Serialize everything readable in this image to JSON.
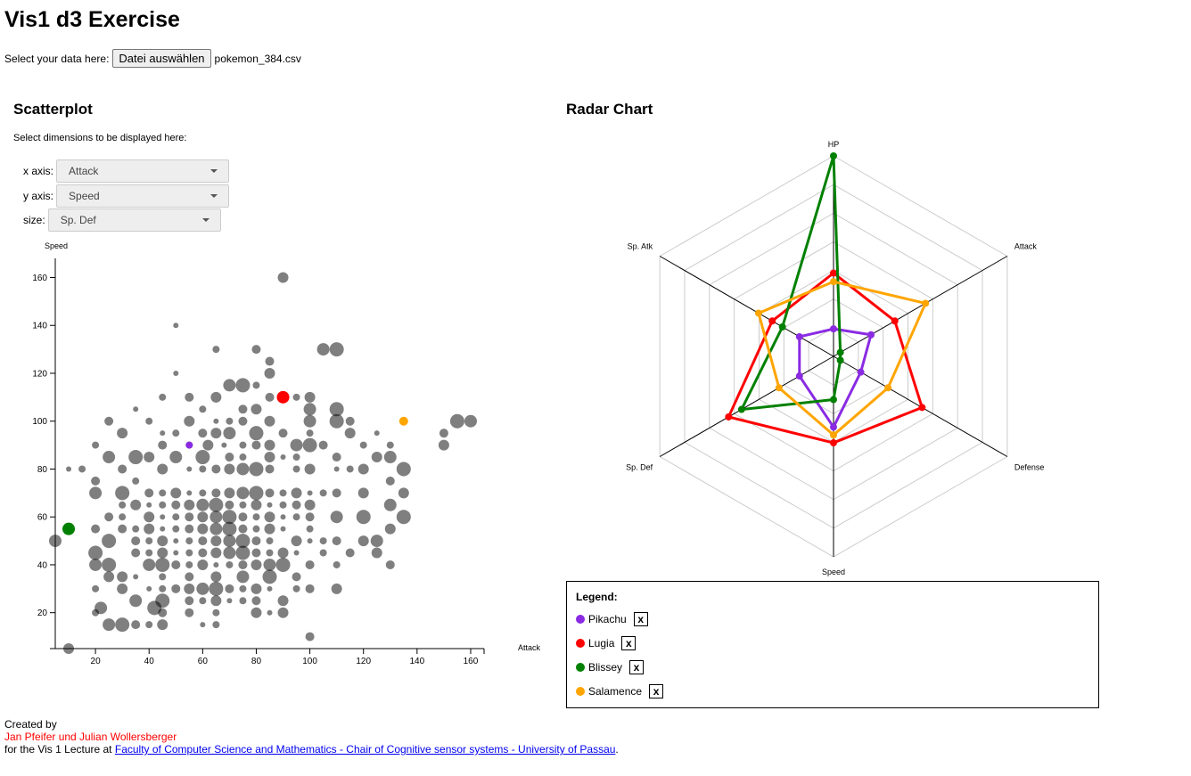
{
  "page": {
    "title": "Vis1 d3 Exercise",
    "file_label": "Select your data here:",
    "file_button": "Datei auswählen",
    "file_name": "pokemon_384.csv"
  },
  "scatter": {
    "title": "Scatterplot",
    "hint": "Select dimensions to be displayed here:",
    "x_label": "x axis:",
    "y_label": "y axis:",
    "size_label": "size:",
    "x_value": "Attack",
    "y_value": "Speed",
    "size_value": "Sp. Def"
  },
  "radar": {
    "title": "Radar Chart"
  },
  "legend": {
    "title": "Legend:",
    "remove_label": "x",
    "items": [
      {
        "name": "Pikachu",
        "color": "#8a2be2"
      },
      {
        "name": "Lugia",
        "color": "#ff0000"
      },
      {
        "name": "Blissey",
        "color": "#008000"
      },
      {
        "name": "Salamence",
        "color": "#ffa500"
      }
    ]
  },
  "footer": {
    "created": "Created by",
    "authors": "Jan Pfeifer und Julian Wollersberger",
    "lecture_prefix": "for the Vis 1 Lecture at ",
    "link_text": "Faculty of Computer Science and Mathematics - Chair of Cognitive sensor systems - University of Passau",
    "suffix": "."
  },
  "chart_data": [
    {
      "type": "scatter",
      "xlabel": "Attack",
      "ylabel": "Speed",
      "xlim": [
        5,
        165
      ],
      "ylim": [
        5,
        168
      ],
      "xticks": [
        20,
        40,
        60,
        80,
        100,
        120,
        140,
        160
      ],
      "yticks": [
        20,
        40,
        60,
        80,
        100,
        120,
        140,
        160
      ],
      "size_dimension": "Sp. Def",
      "grey_points": [
        [
          50,
          140
        ],
        [
          65,
          130
        ],
        [
          80,
          130
        ],
        [
          90,
          160
        ],
        [
          105,
          130
        ],
        [
          110,
          130
        ],
        [
          85,
          125
        ],
        [
          80,
          115
        ],
        [
          85,
          120
        ],
        [
          50,
          120
        ],
        [
          45,
          110
        ],
        [
          55,
          110
        ],
        [
          65,
          110
        ],
        [
          70,
          115
        ],
        [
          75,
          115
        ],
        [
          85,
          110
        ],
        [
          95,
          110
        ],
        [
          100,
          110
        ],
        [
          35,
          105
        ],
        [
          60,
          105
        ],
        [
          75,
          105
        ],
        [
          80,
          105
        ],
        [
          100,
          105
        ],
        [
          110,
          105
        ],
        [
          25,
          100
        ],
        [
          40,
          100
        ],
        [
          55,
          100
        ],
        [
          65,
          100
        ],
        [
          70,
          100
        ],
        [
          75,
          100
        ],
        [
          85,
          100
        ],
        [
          100,
          100
        ],
        [
          110,
          100
        ],
        [
          115,
          100
        ],
        [
          20,
          90
        ],
        [
          30,
          95
        ],
        [
          45,
          95
        ],
        [
          50,
          95
        ],
        [
          60,
          95
        ],
        [
          65,
          95
        ],
        [
          70,
          95
        ],
        [
          80,
          95
        ],
        [
          90,
          95
        ],
        [
          100,
          95
        ],
        [
          115,
          95
        ],
        [
          125,
          95
        ],
        [
          130,
          90
        ],
        [
          150,
          95
        ],
        [
          150,
          90
        ],
        [
          25,
          85
        ],
        [
          35,
          85
        ],
        [
          45,
          90
        ],
        [
          55,
          90
        ],
        [
          62,
          90
        ],
        [
          68,
          90
        ],
        [
          75,
          90
        ],
        [
          80,
          90
        ],
        [
          85,
          90
        ],
        [
          95,
          90
        ],
        [
          100,
          90
        ],
        [
          105,
          90
        ],
        [
          120,
          90
        ],
        [
          125,
          85
        ],
        [
          10,
          80
        ],
        [
          15,
          80
        ],
        [
          30,
          80
        ],
        [
          40,
          85
        ],
        [
          50,
          85
        ],
        [
          60,
          85
        ],
        [
          70,
          85
        ],
        [
          75,
          85
        ],
        [
          85,
          85
        ],
        [
          90,
          85
        ],
        [
          95,
          85
        ],
        [
          110,
          85
        ],
        [
          120,
          80
        ],
        [
          130,
          85
        ],
        [
          135,
          80
        ],
        [
          20,
          75
        ],
        [
          35,
          75
        ],
        [
          45,
          80
        ],
        [
          55,
          80
        ],
        [
          60,
          80
        ],
        [
          65,
          80
        ],
        [
          70,
          80
        ],
        [
          75,
          80
        ],
        [
          80,
          80
        ],
        [
          85,
          80
        ],
        [
          95,
          80
        ],
        [
          100,
          80
        ],
        [
          110,
          80
        ],
        [
          115,
          80
        ],
        [
          130,
          75
        ],
        [
          135,
          70
        ],
        [
          20,
          70
        ],
        [
          30,
          70
        ],
        [
          40,
          70
        ],
        [
          45,
          70
        ],
        [
          50,
          70
        ],
        [
          55,
          70
        ],
        [
          60,
          70
        ],
        [
          65,
          70
        ],
        [
          70,
          70
        ],
        [
          75,
          70
        ],
        [
          80,
          70
        ],
        [
          85,
          70
        ],
        [
          90,
          70
        ],
        [
          95,
          70
        ],
        [
          100,
          70
        ],
        [
          105,
          70
        ],
        [
          110,
          70
        ],
        [
          120,
          70
        ],
        [
          130,
          65
        ],
        [
          135,
          60
        ],
        [
          25,
          60
        ],
        [
          30,
          65
        ],
        [
          35,
          65
        ],
        [
          40,
          65
        ],
        [
          45,
          65
        ],
        [
          50,
          65
        ],
        [
          55,
          65
        ],
        [
          60,
          65
        ],
        [
          65,
          65
        ],
        [
          70,
          65
        ],
        [
          75,
          65
        ],
        [
          80,
          65
        ],
        [
          85,
          65
        ],
        [
          90,
          65
        ],
        [
          95,
          65
        ],
        [
          100,
          65
        ],
        [
          110,
          60
        ],
        [
          120,
          60
        ],
        [
          20,
          55
        ],
        [
          30,
          60
        ],
        [
          40,
          60
        ],
        [
          45,
          60
        ],
        [
          50,
          60
        ],
        [
          55,
          60
        ],
        [
          60,
          60
        ],
        [
          65,
          60
        ],
        [
          70,
          60
        ],
        [
          75,
          60
        ],
        [
          80,
          60
        ],
        [
          85,
          60
        ],
        [
          90,
          60
        ],
        [
          95,
          60
        ],
        [
          100,
          60
        ],
        [
          130,
          55
        ],
        [
          5,
          50
        ],
        [
          25,
          50
        ],
        [
          30,
          55
        ],
        [
          35,
          55
        ],
        [
          40,
          55
        ],
        [
          45,
          55
        ],
        [
          50,
          55
        ],
        [
          55,
          55
        ],
        [
          60,
          55
        ],
        [
          65,
          55
        ],
        [
          70,
          55
        ],
        [
          75,
          55
        ],
        [
          80,
          55
        ],
        [
          85,
          55
        ],
        [
          90,
          55
        ],
        [
          100,
          55
        ],
        [
          110,
          50
        ],
        [
          120,
          50
        ],
        [
          125,
          50
        ],
        [
          20,
          45
        ],
        [
          35,
          50
        ],
        [
          40,
          50
        ],
        [
          45,
          50
        ],
        [
          50,
          50
        ],
        [
          55,
          50
        ],
        [
          60,
          50
        ],
        [
          65,
          50
        ],
        [
          70,
          50
        ],
        [
          75,
          50
        ],
        [
          80,
          50
        ],
        [
          85,
          50
        ],
        [
          95,
          50
        ],
        [
          100,
          50
        ],
        [
          105,
          50
        ],
        [
          115,
          45
        ],
        [
          125,
          45
        ],
        [
          20,
          40
        ],
        [
          25,
          40
        ],
        [
          35,
          45
        ],
        [
          40,
          45
        ],
        [
          45,
          45
        ],
        [
          50,
          45
        ],
        [
          55,
          45
        ],
        [
          60,
          45
        ],
        [
          65,
          45
        ],
        [
          70,
          45
        ],
        [
          75,
          45
        ],
        [
          80,
          45
        ],
        [
          85,
          45
        ],
        [
          90,
          45
        ],
        [
          95,
          45
        ],
        [
          105,
          45
        ],
        [
          130,
          40
        ],
        [
          30,
          35
        ],
        [
          40,
          40
        ],
        [
          45,
          40
        ],
        [
          50,
          40
        ],
        [
          55,
          40
        ],
        [
          60,
          40
        ],
        [
          65,
          40
        ],
        [
          70,
          40
        ],
        [
          75,
          40
        ],
        [
          80,
          40
        ],
        [
          85,
          40
        ],
        [
          90,
          40
        ],
        [
          100,
          40
        ],
        [
          110,
          40
        ],
        [
          25,
          35
        ],
        [
          35,
          35
        ],
        [
          45,
          35
        ],
        [
          55,
          35
        ],
        [
          65,
          35
        ],
        [
          75,
          35
        ],
        [
          85,
          35
        ],
        [
          95,
          35
        ],
        [
          20,
          30
        ],
        [
          30,
          30
        ],
        [
          40,
          30
        ],
        [
          45,
          30
        ],
        [
          50,
          30
        ],
        [
          55,
          30
        ],
        [
          60,
          30
        ],
        [
          65,
          30
        ],
        [
          70,
          30
        ],
        [
          75,
          30
        ],
        [
          80,
          30
        ],
        [
          85,
          30
        ],
        [
          95,
          30
        ],
        [
          100,
          30
        ],
        [
          110,
          30
        ],
        [
          35,
          25
        ],
        [
          45,
          25
        ],
        [
          55,
          25
        ],
        [
          60,
          25
        ],
        [
          65,
          25
        ],
        [
          70,
          25
        ],
        [
          75,
          25
        ],
        [
          80,
          25
        ],
        [
          90,
          25
        ],
        [
          22,
          22
        ],
        [
          42,
          22
        ],
        [
          55,
          20
        ],
        [
          65,
          20
        ],
        [
          80,
          20
        ],
        [
          85,
          20
        ],
        [
          20,
          20
        ],
        [
          45,
          20
        ],
        [
          90,
          20
        ],
        [
          25,
          15
        ],
        [
          30,
          15
        ],
        [
          35,
          15
        ],
        [
          40,
          15
        ],
        [
          45,
          15
        ],
        [
          60,
          15
        ],
        [
          65,
          15
        ],
        [
          100,
          10
        ],
        [
          10,
          5
        ],
        [
          160,
          100
        ],
        [
          155,
          100
        ]
      ],
      "highlighted": [
        {
          "name": "Pikachu",
          "x": 55,
          "y": 90,
          "color": "#8a2be2"
        },
        {
          "name": "Lugia",
          "x": 90,
          "y": 110,
          "color": "#ff0000"
        },
        {
          "name": "Blissey",
          "x": 10,
          "y": 55,
          "color": "#008000"
        },
        {
          "name": "Salamence",
          "x": 135,
          "y": 100,
          "color": "#ffa500"
        }
      ]
    },
    {
      "type": "radar",
      "axes": [
        "HP",
        "Attack",
        "Defense",
        "Speed",
        "Sp. Def",
        "Sp. Atk"
      ],
      "max": 255,
      "grid_levels": 7,
      "series": [
        {
          "name": "Pikachu",
          "color": "#8a2be2",
          "values": [
            35,
            55,
            40,
            90,
            50,
            50
          ]
        },
        {
          "name": "Lugia",
          "color": "#ff0000",
          "values": [
            106,
            90,
            130,
            110,
            154,
            90
          ]
        },
        {
          "name": "Blissey",
          "color": "#008000",
          "values": [
            255,
            10,
            10,
            55,
            135,
            75
          ]
        },
        {
          "name": "Salamence",
          "color": "#ffa500",
          "values": [
            95,
            135,
            80,
            100,
            80,
            110
          ]
        }
      ]
    }
  ]
}
